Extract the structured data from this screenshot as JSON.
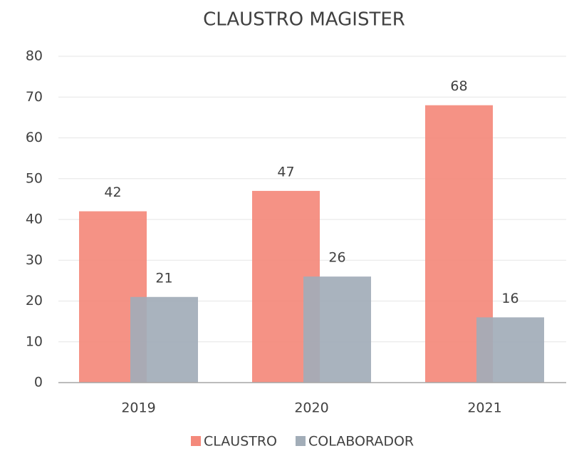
{
  "chart_data": {
    "type": "bar",
    "title": "CLAUSTRO MAGISTER",
    "categories": [
      "2019",
      "2020",
      "2021"
    ],
    "series": [
      {
        "name": "CLAUSTRO",
        "color": "#f4897b",
        "values": [
          42,
          47,
          68
        ]
      },
      {
        "name": "COLABORADOR",
        "color": "#a2adb8",
        "values": [
          21,
          26,
          16
        ]
      }
    ],
    "ylim": [
      0,
      80
    ],
    "yticks": [
      0,
      10,
      20,
      30,
      40,
      50,
      60,
      70,
      80
    ],
    "grid": true,
    "legend": "bottom"
  }
}
